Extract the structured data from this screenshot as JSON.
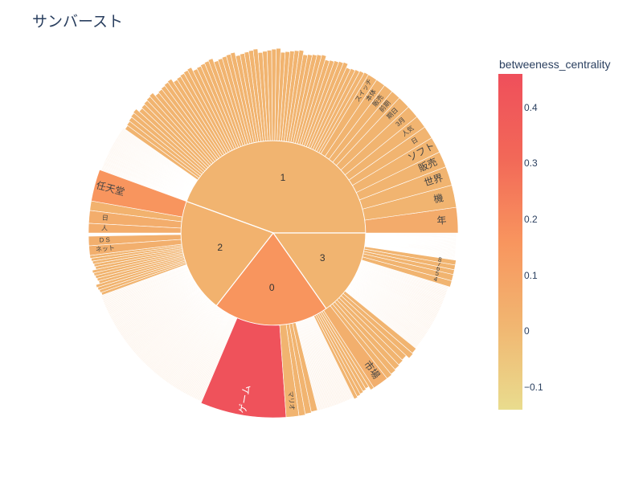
{
  "title": "サンバースト",
  "colorbar": {
    "title": "betweeness_centrality",
    "min": -0.14,
    "max": 0.46,
    "ticks": [
      -0.1,
      0,
      0.1,
      0.2,
      0.3,
      0.4
    ],
    "tick_labels": [
      "−0.1",
      "0",
      "0.1",
      "0.2",
      "0.3",
      "0.4"
    ],
    "colors": [
      "#e9dc8e",
      "#f1b671",
      "#f8955e",
      "#f26858",
      "#ef4f5b"
    ]
  },
  "chart_data": {
    "type": "sunburst",
    "center": [
      340,
      290
    ],
    "inner_radius": 115,
    "outer_radius": 230,
    "root_segments": [
      {
        "id": "1",
        "label": "1",
        "start_deg": 0,
        "end_deg": 160,
        "value_color": 0.02
      },
      {
        "id": "2",
        "label": "2",
        "start_deg": 160,
        "end_deg": 232,
        "value_color": 0.03
      },
      {
        "id": "0",
        "label": "0",
        "start_deg": 232,
        "end_deg": 305,
        "value_color": 0.16
      },
      {
        "id": "3",
        "label": "3",
        "start_deg": 305,
        "end_deg": 360,
        "value_color": 0.02
      }
    ],
    "labeled_leaves": [
      {
        "label": "年",
        "parent": "1",
        "start_deg": 0,
        "end_deg": 8,
        "value_color": 0.06
      },
      {
        "label": "機",
        "parent": "1",
        "start_deg": 8,
        "end_deg": 15,
        "value_color": 0.02
      },
      {
        "label": "世界",
        "parent": "1",
        "start_deg": 15,
        "end_deg": 21,
        "value_color": 0.02
      },
      {
        "label": "販売",
        "parent": "1",
        "start_deg": 21,
        "end_deg": 26,
        "value_color": 0.02
      },
      {
        "label": "ソフト",
        "parent": "1",
        "start_deg": 26,
        "end_deg": 31,
        "value_color": 0.02
      },
      {
        "label": "日",
        "parent": "1",
        "start_deg": 31,
        "end_deg": 35,
        "value_color": 0.02
      },
      {
        "label": "人気",
        "parent": "1",
        "start_deg": 35,
        "end_deg": 39,
        "value_color": 0.02
      },
      {
        "label": "3月",
        "parent": "1",
        "start_deg": 39,
        "end_deg": 43,
        "value_color": 0.02
      },
      {
        "label": "期日",
        "parent": "1",
        "start_deg": 43,
        "end_deg": 47,
        "value_color": 0.02
      },
      {
        "label": "前期",
        "parent": "1",
        "start_deg": 47,
        "end_deg": 50,
        "value_color": 0.02
      },
      {
        "label": "販売",
        "parent": "1",
        "start_deg": 50,
        "end_deg": 53,
        "value_color": 0.02
      },
      {
        "label": "本体",
        "parent": "1",
        "start_deg": 53,
        "end_deg": 56,
        "value_color": 0.02
      },
      {
        "label": "スイッチ",
        "parent": "1",
        "start_deg": 56,
        "end_deg": 59,
        "value_color": 0.02
      },
      {
        "label": "任天堂",
        "parent": "2",
        "start_deg": 160,
        "end_deg": 170,
        "value_color": 0.16
      },
      {
        "label": "日",
        "parent": "2",
        "start_deg": 173,
        "end_deg": 177,
        "value_color": 0.05
      },
      {
        "label": "人",
        "parent": "2",
        "start_deg": 177,
        "end_deg": 180,
        "value_color": 0.05
      },
      {
        "label": "D S",
        "parent": "2",
        "start_deg": 181,
        "end_deg": 184,
        "value_color": 0.04
      },
      {
        "label": "ネット",
        "parent": "2",
        "start_deg": 184,
        "end_deg": 187,
        "value_color": 0.04
      },
      {
        "label": "ゲーム",
        "parent": "0",
        "start_deg": 247,
        "end_deg": 274,
        "value_color": 0.44
      },
      {
        "label": "マリオ",
        "parent": "0",
        "start_deg": 274,
        "end_deg": 278,
        "value_color": 0.02
      },
      {
        "label": "市場",
        "parent": "3",
        "start_deg": 303,
        "end_deg": 308,
        "value_color": 0.04
      },
      {
        "label": "4",
        "parent": "3",
        "start_deg": 343,
        "end_deg": 345,
        "value_color": 0.02
      },
      {
        "label": "5",
        "parent": "3",
        "start_deg": 345,
        "end_deg": 347,
        "value_color": 0.02
      },
      {
        "label": "6",
        "parent": "3",
        "start_deg": 347,
        "end_deg": 348.5,
        "value_color": 0.02
      },
      {
        "label": "7",
        "parent": "3",
        "start_deg": 348.5,
        "end_deg": 350,
        "value_color": 0.02
      },
      {
        "label": "8",
        "parent": "3",
        "start_deg": 350,
        "end_deg": 351.5,
        "value_color": 0.02
      }
    ],
    "unlabeled_leaf_groups": [
      {
        "parent": "1",
        "start_deg": 59,
        "end_deg": 145,
        "count": 60,
        "value_color": 0.02
      },
      {
        "parent": "1",
        "start_deg": 145,
        "end_deg": 160,
        "count": 50,
        "value_color": 0.02,
        "thin": true
      },
      {
        "parent": "2",
        "start_deg": 170,
        "end_deg": 173,
        "count": 1,
        "value_color": 0.03
      },
      {
        "parent": "2",
        "start_deg": 187,
        "end_deg": 200,
        "count": 14,
        "value_color": 0.02
      },
      {
        "parent": "2",
        "start_deg": 200,
        "end_deg": 247,
        "count": 120,
        "value_color": 0.02,
        "thin": true
      },
      {
        "parent": "0",
        "start_deg": 278,
        "end_deg": 284,
        "count": 3,
        "value_color": 0.02
      },
      {
        "parent": "0",
        "start_deg": 284,
        "end_deg": 296,
        "count": 25,
        "value_color": 0.02,
        "thin": true
      },
      {
        "parent": "0",
        "start_deg": 296,
        "end_deg": 303,
        "count": 6,
        "value_color": 0.02
      },
      {
        "parent": "3",
        "start_deg": 308,
        "end_deg": 321,
        "count": 7,
        "value_color": 0.02
      },
      {
        "parent": "3",
        "start_deg": 321,
        "end_deg": 343,
        "count": 60,
        "value_color": 0.02,
        "thin": true
      },
      {
        "parent": "3",
        "start_deg": 351.5,
        "end_deg": 360,
        "count": 40,
        "value_color": 0.02,
        "thin": true
      }
    ]
  }
}
